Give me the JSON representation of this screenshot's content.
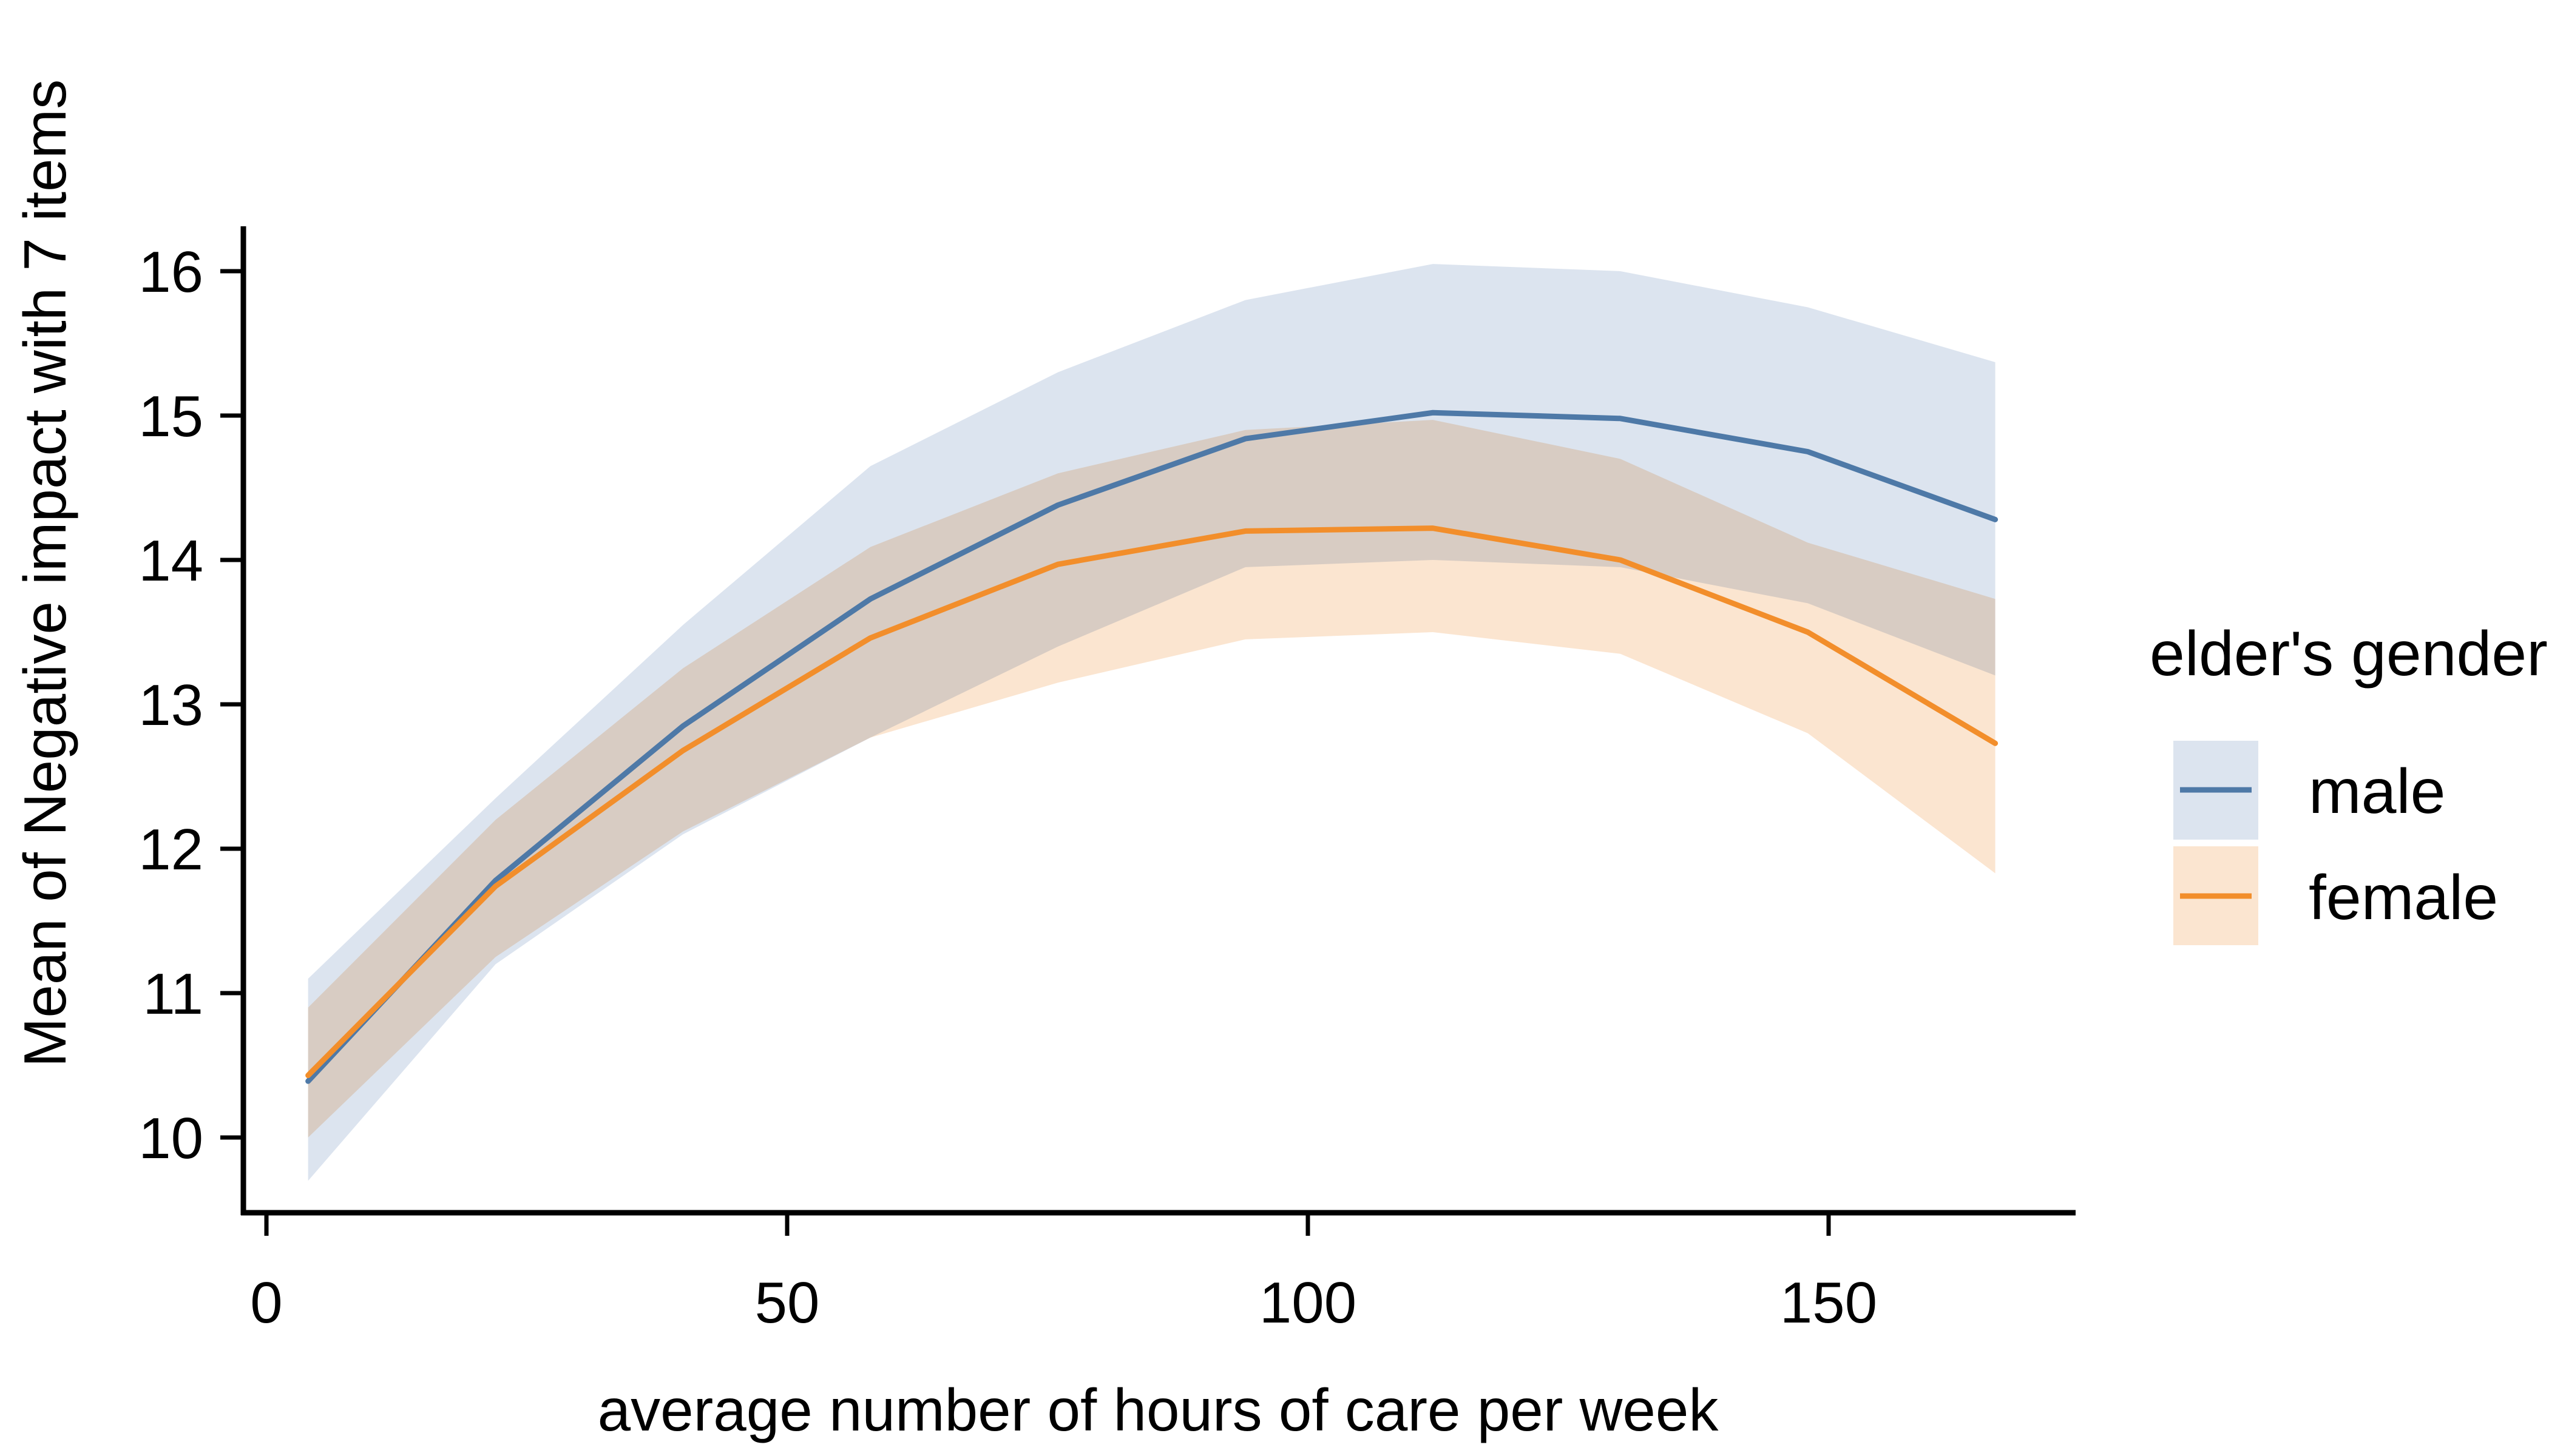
{
  "chart_data": {
    "type": "line",
    "title": "",
    "xlabel": "average number of hours of care per week",
    "ylabel": "Mean of Negative impact with 7 items",
    "legend_title": "elder's gender",
    "legend_position": "right",
    "grid": false,
    "xlim": [
      -2,
      174
    ],
    "ylim": [
      9.5,
      16.3
    ],
    "x_ticks": [
      0,
      50,
      100,
      150
    ],
    "y_ticks": [
      10,
      11,
      12,
      13,
      14,
      15,
      16
    ],
    "x": [
      4,
      22,
      40,
      58,
      76,
      94,
      112,
      130,
      148,
      166
    ],
    "series": [
      {
        "name": "male",
        "line_color": "#4e79a7",
        "band_color": "#dce4ef",
        "values": [
          10.39,
          11.78,
          12.85,
          13.73,
          14.38,
          14.84,
          15.02,
          14.98,
          14.75,
          14.28
        ],
        "lower": [
          9.7,
          11.2,
          12.1,
          12.77,
          13.4,
          13.95,
          14.0,
          13.95,
          13.7,
          13.2
        ],
        "upper": [
          11.1,
          12.35,
          13.55,
          14.65,
          15.3,
          15.8,
          16.05,
          16.0,
          15.75,
          15.37
        ]
      },
      {
        "name": "female",
        "line_color": "#f28e2b",
        "band_color": "#fbe5d0",
        "values": [
          10.43,
          11.74,
          12.68,
          13.46,
          13.97,
          14.2,
          14.22,
          14.0,
          13.5,
          12.73
        ],
        "lower": [
          10.0,
          11.25,
          12.12,
          12.77,
          13.15,
          13.45,
          13.5,
          13.35,
          12.8,
          11.83
        ],
        "upper": [
          10.9,
          12.2,
          13.25,
          14.09,
          14.6,
          14.9,
          14.97,
          14.7,
          14.12,
          13.73
        ]
      }
    ]
  }
}
